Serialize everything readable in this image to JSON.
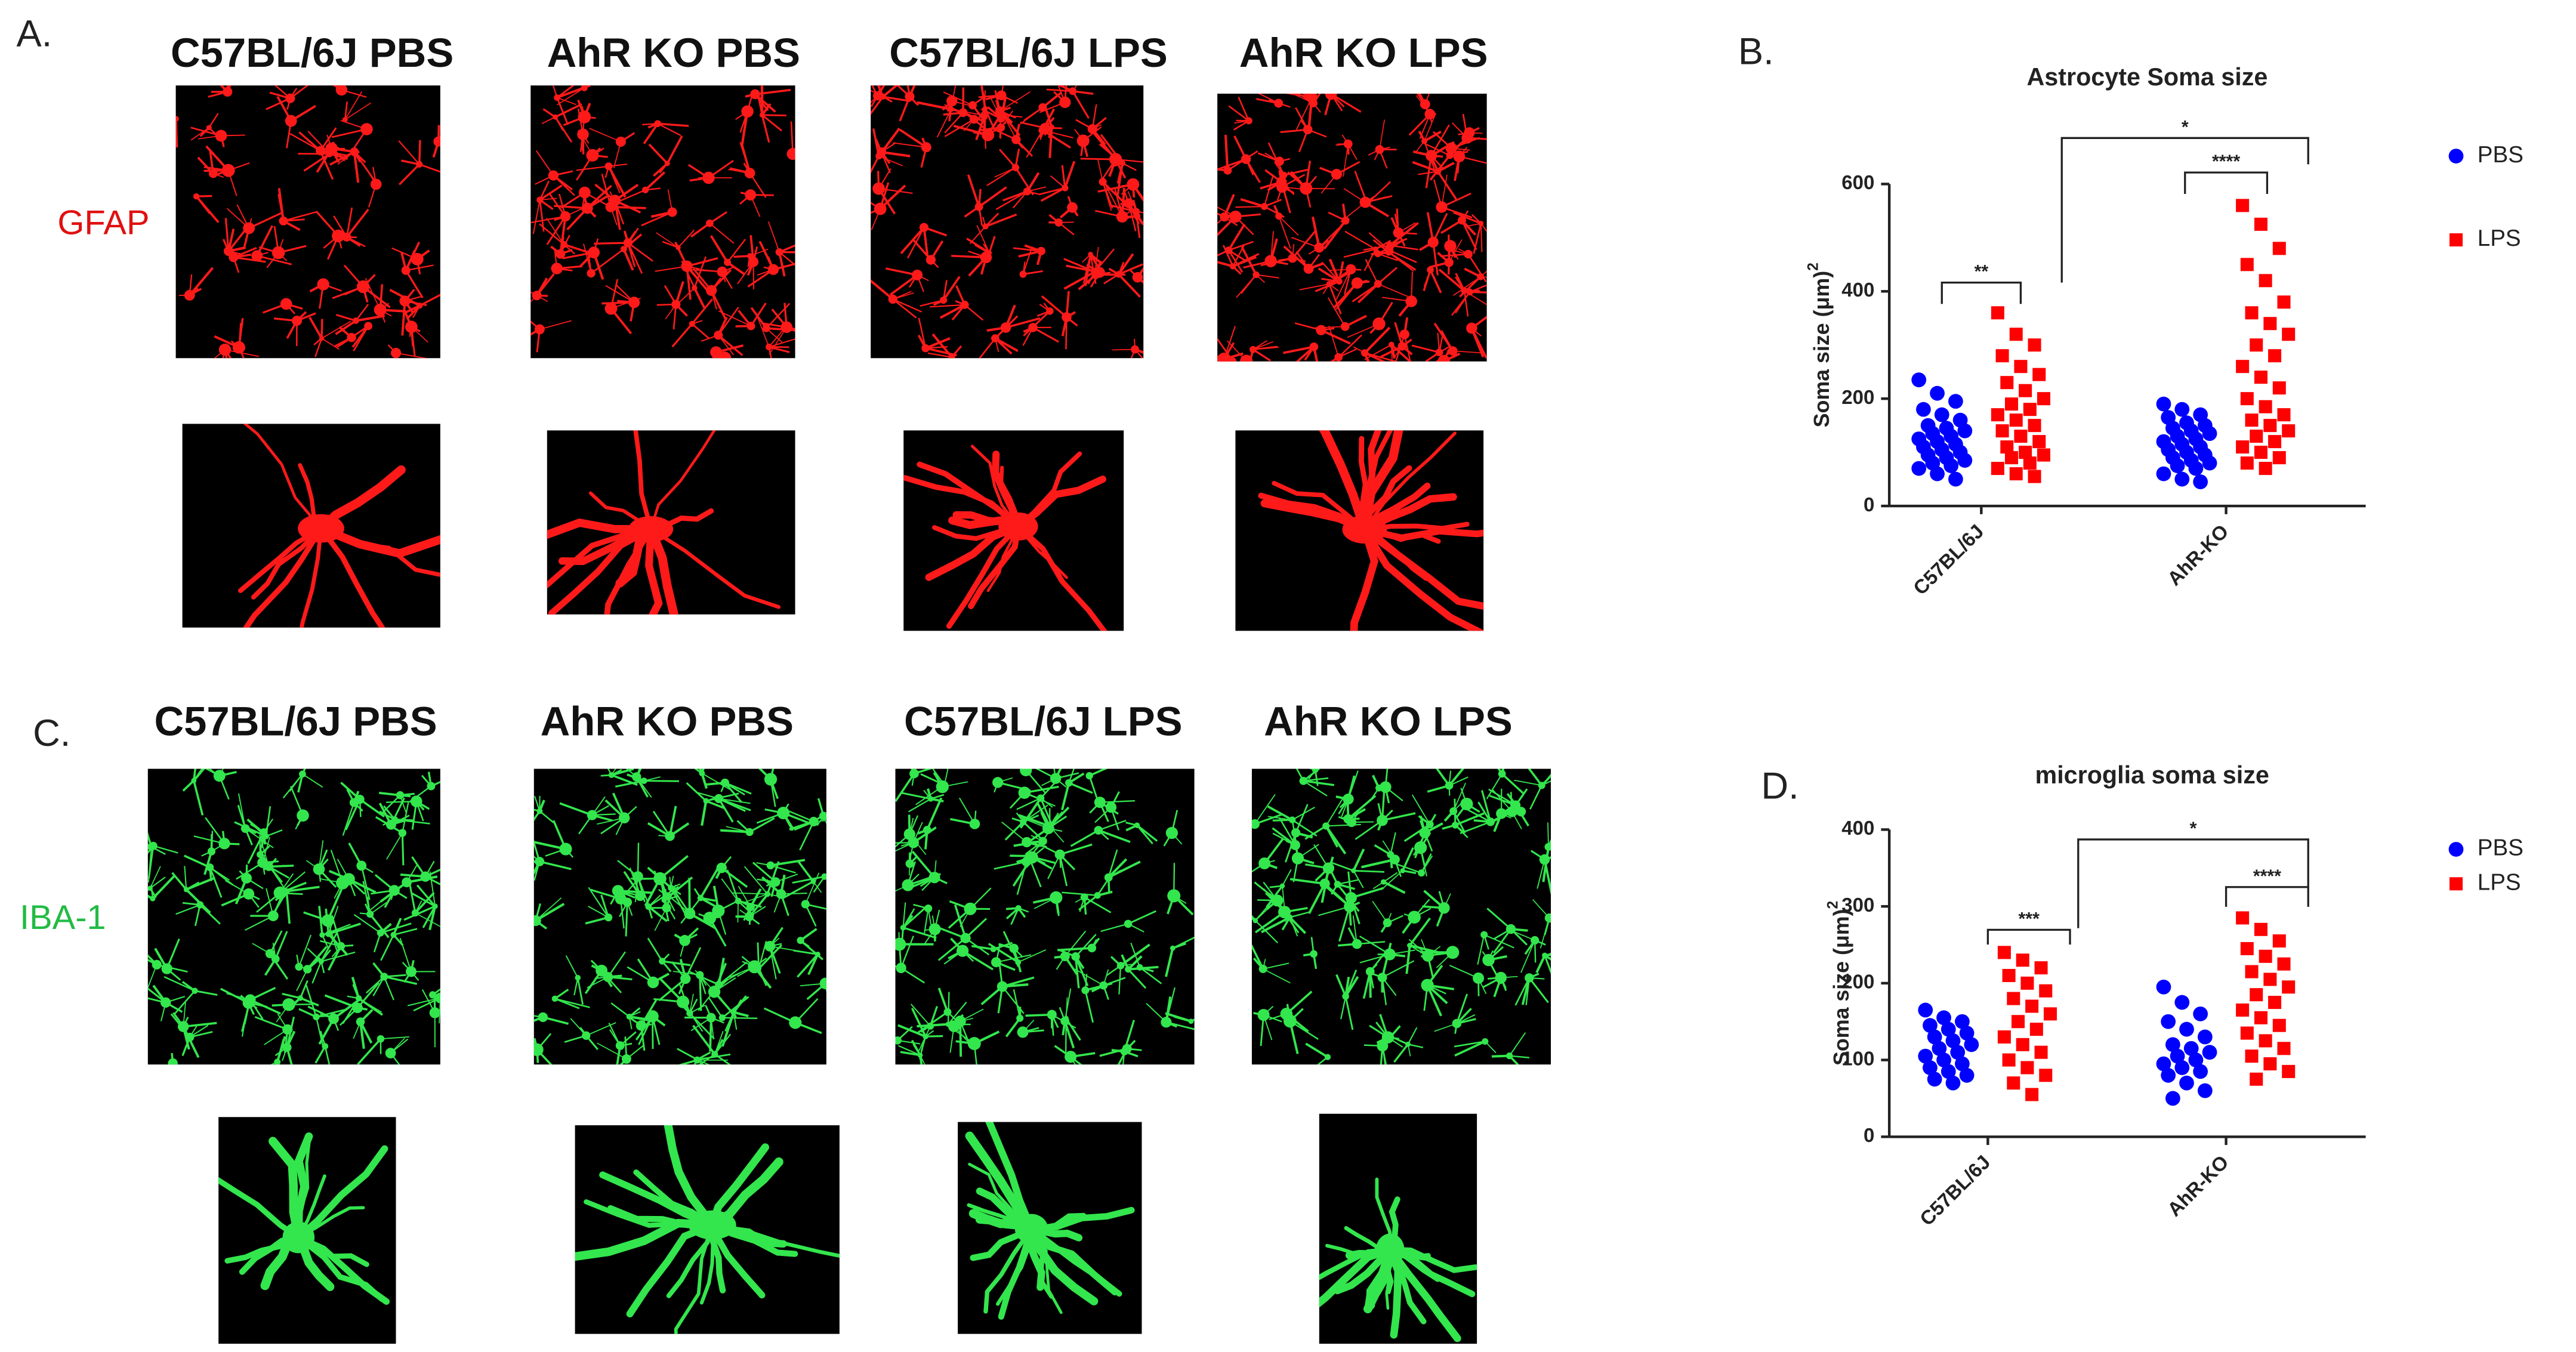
{
  "panels": {
    "A": {
      "label": "A.",
      "columns": [
        "C57BL/6J PBS",
        "AhR KO PBS",
        "C57BL/6J LPS",
        "AhR KO LPS"
      ],
      "stain": "GFAP"
    },
    "C": {
      "label": "C.",
      "columns": [
        "C57BL/6J PBS",
        "AhR KO PBS",
        "C57BL/6J LPS",
        "AhR KO LPS"
      ],
      "stain": "IBA-1"
    }
  },
  "chart_data": [
    {
      "type": "dot",
      "panel_label": "B.",
      "title": "Astrocyte Soma size",
      "y_label": "Soma size  (μm)",
      "y_label_sup": "2",
      "categories": [
        "C57BL/6J",
        "AhR-KO"
      ],
      "series": [
        {
          "name": "PBS",
          "color": "#0000ff",
          "marker": "circle",
          "values": [
            [
              235,
              210,
              195,
              180,
              170,
              160,
              150,
              145,
              140,
              135,
              130,
              125,
              120,
              115,
              110,
              105,
              100,
              95,
              90,
              85,
              80,
              75,
              70,
              60,
              50
            ],
            [
              190,
              180,
              170,
              165,
              155,
              150,
              145,
              140,
              135,
              130,
              125,
              120,
              115,
              110,
              105,
              100,
              95,
              90,
              85,
              80,
              75,
              70,
              60,
              50,
              45
            ]
          ]
        },
        {
          "name": "LPS",
          "color": "#ff0000",
          "marker": "square",
          "values": [
            [
              360,
              320,
              300,
              280,
              260,
              245,
              230,
              215,
              200,
              190,
              180,
              170,
              160,
              150,
              140,
              130,
              120,
              110,
              100,
              95,
              90,
              80,
              70,
              60,
              55
            ],
            [
              560,
              525,
              480,
              450,
              420,
              380,
              360,
              340,
              320,
              300,
              280,
              260,
              240,
              220,
              200,
              185,
              170,
              160,
              150,
              140,
              130,
              120,
              110,
              100,
              90,
              80,
              70
            ]
          ]
        }
      ],
      "ylim": [
        0,
        600
      ],
      "yticks": [
        0,
        200,
        400,
        600
      ],
      "significance": [
        "**",
        "****",
        "*"
      ]
    },
    {
      "type": "dot",
      "panel_label": "D.",
      "title": "microglia soma size",
      "y_label": "Soma size  (μm)",
      "y_label_sup": "2",
      "categories": [
        "C57BL/6J",
        "AhR-KO"
      ],
      "series": [
        {
          "name": "PBS",
          "color": "#0000ff",
          "marker": "circle",
          "values": [
            [
              165,
              155,
              150,
              145,
              140,
              135,
              130,
              125,
              120,
              115,
              110,
              105,
              100,
              95,
              90,
              85,
              80,
              75,
              70
            ],
            [
              195,
              175,
              160,
              150,
              140,
              130,
              120,
              115,
              110,
              105,
              100,
              95,
              90,
              85,
              80,
              70,
              60,
              50
            ]
          ]
        },
        {
          "name": "LPS",
          "color": "#ff0000",
          "marker": "square",
          "values": [
            [
              240,
              230,
              220,
              210,
              200,
              190,
              180,
              170,
              160,
              150,
              140,
              130,
              120,
              110,
              100,
              90,
              80,
              70,
              55
            ],
            [
              285,
              270,
              255,
              245,
              235,
              225,
              215,
              205,
              195,
              185,
              175,
              165,
              155,
              145,
              135,
              125,
              115,
              105,
              95,
              85,
              75
            ]
          ]
        }
      ],
      "ylim": [
        0,
        400
      ],
      "yticks": [
        0,
        100,
        200,
        300,
        400
      ],
      "significance": [
        "***",
        "****",
        "*"
      ]
    }
  ]
}
